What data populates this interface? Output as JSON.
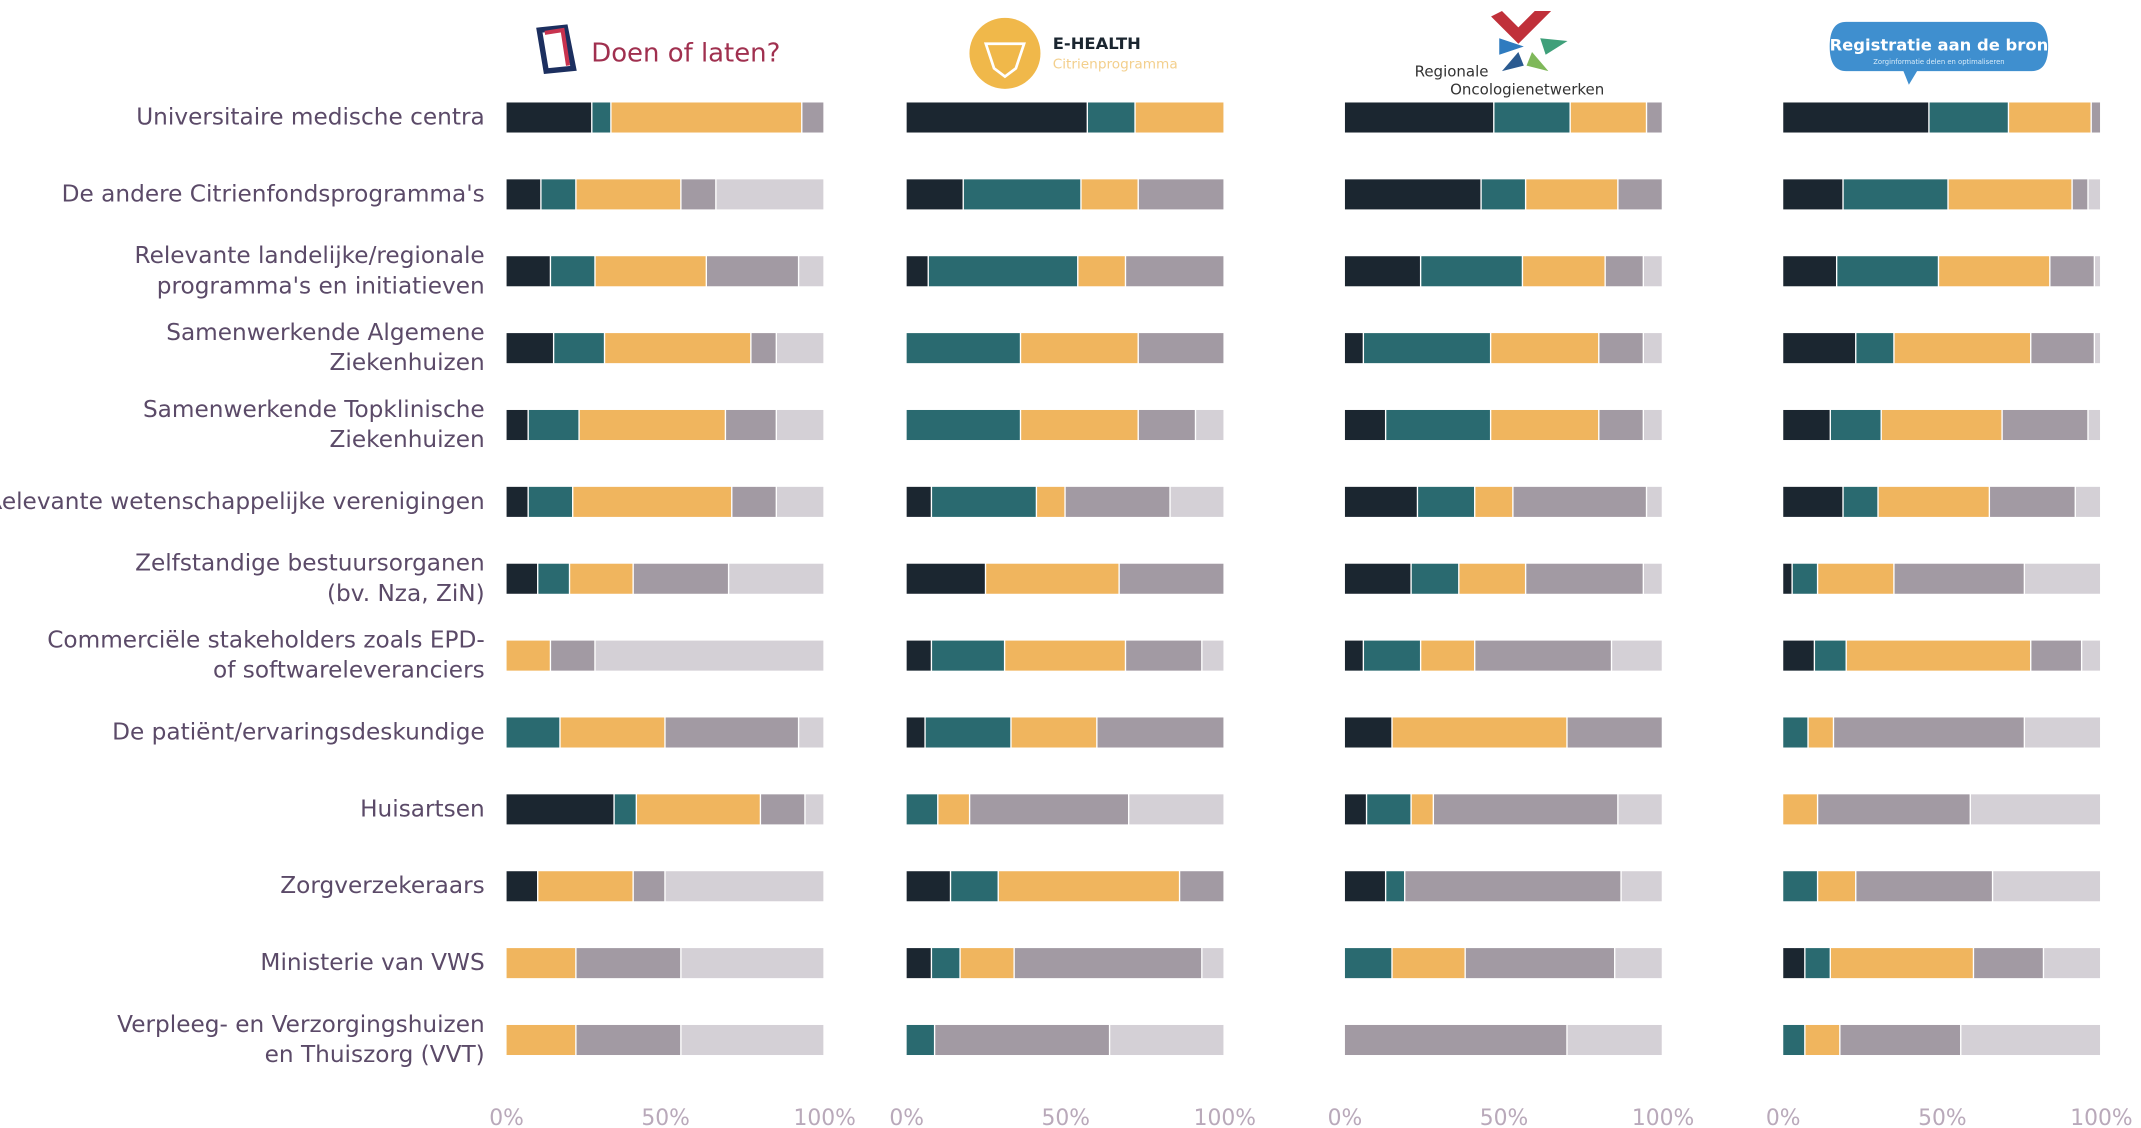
{
  "chart_data": [
    {
      "type": "bar",
      "orientation": "horizontal",
      "stacked": true,
      "title": "Doen of laten?",
      "categories": [
        [
          "Universitaire medische centra"
        ],
        [
          "De andere Citrienfondsprogramma's"
        ],
        [
          "Relevante landelijke/regionale",
          "programma's en initiatieven"
        ],
        [
          "Samenwerkende Algemene",
          "Ziekenhuizen"
        ],
        [
          "Samenwerkende Topklinische",
          "Ziekenhuizen"
        ],
        [
          "Relevante wetenschappelijke verenigingen"
        ],
        [
          "Zelfstandige bestuursorganen",
          "(bv. Nza, ZiN)"
        ],
        [
          "Commerciële stakeholders zoals EPD-",
          "of softwareleveranciers"
        ],
        [
          "De patiënt/ervaringsdeskundige"
        ],
        [
          "Huisartsen"
        ],
        [
          "Zorgverzekeraars"
        ],
        [
          "Ministerie van VWS"
        ],
        [
          "Verpleeg- en Verzorgingshuizen",
          "en Thuiszorg (VVT)"
        ]
      ],
      "series": [
        {
          "color": "#1b2630",
          "values": [
            27,
            11,
            14,
            15,
            7,
            7,
            10,
            0,
            0,
            34,
            10,
            0,
            0
          ]
        },
        {
          "color": "#2a6a70",
          "values": [
            6,
            11,
            14,
            16,
            16,
            14,
            10,
            0,
            17,
            7,
            0,
            0,
            0
          ]
        },
        {
          "color": "#f0b55e",
          "values": [
            60,
            33,
            35,
            46,
            46,
            50,
            20,
            14,
            33,
            39,
            30,
            22,
            22
          ]
        },
        {
          "color": "#a29aa3",
          "values": [
            7,
            11,
            29,
            8,
            16,
            14,
            30,
            14,
            42,
            14,
            10,
            33,
            33
          ]
        },
        {
          "color": "#d4d0d6",
          "values": [
            0,
            34,
            8,
            15,
            15,
            15,
            30,
            72,
            8,
            6,
            50,
            45,
            45
          ]
        }
      ],
      "xlim": [
        0,
        100
      ],
      "xticks": [
        {
          "value": 0,
          "label": "0%"
        },
        {
          "value": 50,
          "label": "50%"
        },
        {
          "value": 100,
          "label": "100%"
        }
      ]
    },
    {
      "type": "bar",
      "orientation": "horizontal",
      "stacked": true,
      "title": "E-HEALTH",
      "subtitle": "Citrienprogramma",
      "series": [
        {
          "color": "#1b2630",
          "values": [
            57,
            18,
            7,
            0,
            0,
            8,
            25,
            8,
            6,
            0,
            14,
            8,
            0
          ]
        },
        {
          "color": "#2a6a70",
          "values": [
            15,
            37,
            47,
            36,
            36,
            33,
            0,
            23,
            27,
            10,
            15,
            9,
            9
          ]
        },
        {
          "color": "#f0b55e",
          "values": [
            28,
            18,
            15,
            37,
            37,
            9,
            42,
            38,
            27,
            10,
            57,
            17,
            0
          ]
        },
        {
          "color": "#a29aa3",
          "values": [
            0,
            27,
            31,
            27,
            18,
            33,
            33,
            24,
            40,
            50,
            14,
            59,
            55
          ]
        },
        {
          "color": "#d4d0d6",
          "values": [
            0,
            0,
            0,
            0,
            9,
            17,
            0,
            7,
            0,
            30,
            0,
            7,
            36
          ]
        }
      ],
      "xlim": [
        0,
        100
      ],
      "xticks": [
        {
          "value": 0,
          "label": "0%"
        },
        {
          "value": 50,
          "label": "50%"
        },
        {
          "value": 100,
          "label": "100%"
        }
      ]
    },
    {
      "type": "bar",
      "orientation": "horizontal",
      "stacked": true,
      "title": "Regionale",
      "subtitle": "Oncologienetwerken",
      "series": [
        {
          "color": "#1b2630",
          "values": [
            47,
            43,
            24,
            6,
            13,
            23,
            21,
            6,
            15,
            7,
            13,
            0,
            0
          ]
        },
        {
          "color": "#2a6a70",
          "values": [
            24,
            14,
            32,
            40,
            33,
            18,
            15,
            18,
            0,
            14,
            6,
            15,
            0
          ]
        },
        {
          "color": "#f0b55e",
          "values": [
            24,
            29,
            26,
            34,
            34,
            12,
            21,
            17,
            55,
            7,
            0,
            23,
            0
          ]
        },
        {
          "color": "#a29aa3",
          "values": [
            5,
            14,
            12,
            14,
            14,
            42,
            37,
            43,
            30,
            58,
            68,
            47,
            70
          ]
        },
        {
          "color": "#d4d0d6",
          "values": [
            0,
            0,
            6,
            6,
            6,
            5,
            6,
            16,
            0,
            14,
            13,
            15,
            30
          ]
        }
      ],
      "xlim": [
        0,
        100
      ],
      "xticks": [
        {
          "value": 0,
          "label": "0%"
        },
        {
          "value": 50,
          "label": "50%"
        },
        {
          "value": 100,
          "label": "100%"
        }
      ]
    },
    {
      "type": "bar",
      "orientation": "horizontal",
      "stacked": true,
      "title": "Registratie aan de bron",
      "subtitle": "Zorginformatie delen en optimaliseren",
      "series": [
        {
          "color": "#1b2630",
          "values": [
            46,
            19,
            17,
            23,
            15,
            19,
            3,
            10,
            0,
            0,
            0,
            7,
            0
          ]
        },
        {
          "color": "#2a6a70",
          "values": [
            25,
            33,
            32,
            12,
            16,
            11,
            8,
            10,
            8,
            0,
            11,
            8,
            7
          ]
        },
        {
          "color": "#f0b55e",
          "values": [
            26,
            39,
            35,
            43,
            38,
            35,
            24,
            58,
            8,
            11,
            12,
            45,
            11
          ]
        },
        {
          "color": "#a29aa3",
          "values": [
            3,
            5,
            14,
            20,
            27,
            27,
            41,
            16,
            60,
            48,
            43,
            22,
            38
          ]
        },
        {
          "color": "#d4d0d6",
          "values": [
            0,
            4,
            2,
            2,
            4,
            8,
            24,
            6,
            24,
            41,
            34,
            18,
            44
          ]
        }
      ],
      "xlim": [
        0,
        100
      ],
      "xticks": [
        {
          "value": 0,
          "label": "0%"
        },
        {
          "value": 50,
          "label": "50%"
        },
        {
          "value": 100,
          "label": "100%"
        }
      ]
    }
  ]
}
